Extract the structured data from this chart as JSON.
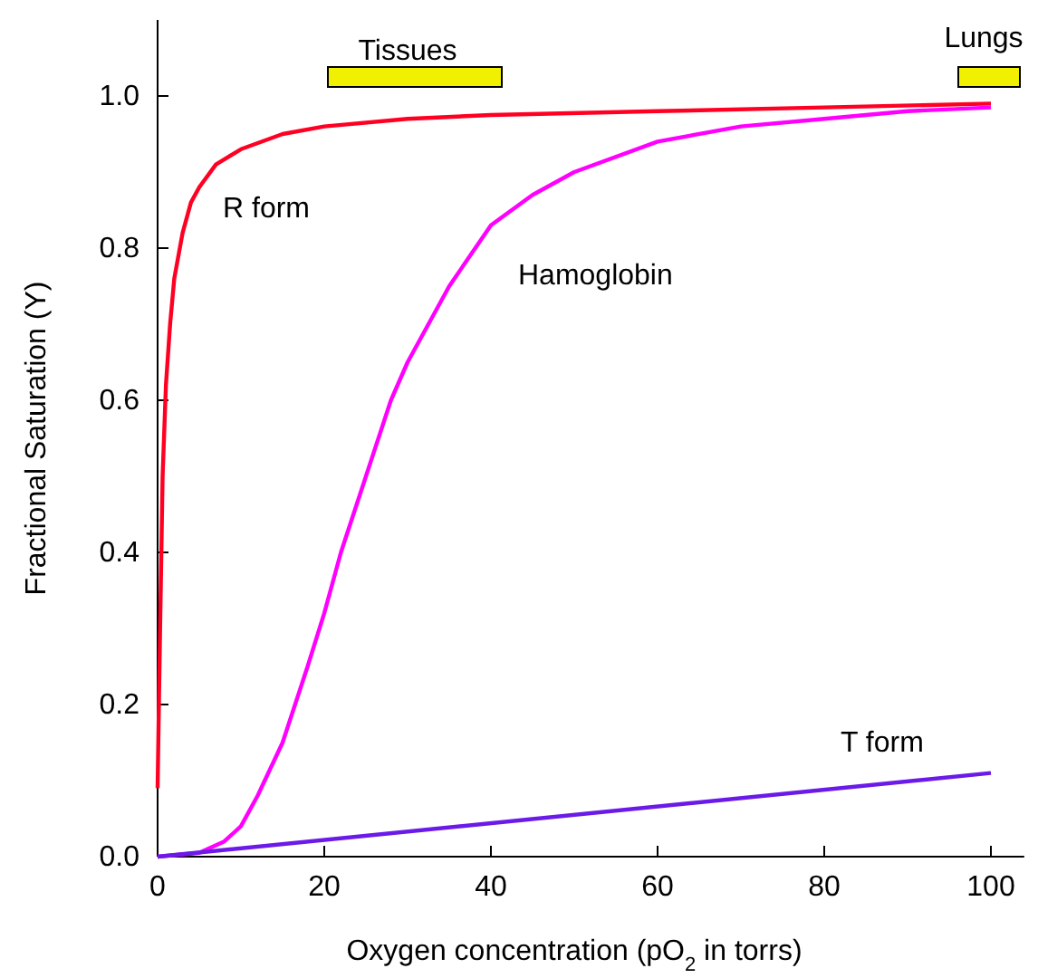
{
  "chart_data": {
    "type": "line",
    "xlabel": "Oxygen concentration (pO$_{2}$ in torrs)",
    "ylabel": "Fractional Saturation (Y)",
    "xlim": [
      0,
      104
    ],
    "ylim": [
      0,
      1.1
    ],
    "xticks": [
      0,
      20,
      40,
      60,
      80,
      100
    ],
    "yticks": [
      {
        "value": 0,
        "label": "0.0"
      },
      {
        "value": 0.2,
        "label": "0.2"
      },
      {
        "value": 0.4,
        "label": "0.4"
      },
      {
        "value": 0.6,
        "label": "0.6"
      },
      {
        "value": 0.8,
        "label": "0.8"
      },
      {
        "value": 1,
        "label": "1.0"
      }
    ],
    "grid": false,
    "line_style": "solid",
    "marker": "none",
    "series": [
      {
        "color": "#ff0022",
        "x": [
          0,
          0.3,
          0.6,
          1,
          1.5,
          2,
          3,
          4,
          5,
          7,
          10,
          15,
          20,
          30,
          40,
          60,
          80,
          100
        ],
        "values": [
          0.09,
          0.3,
          0.5,
          0.62,
          0.7,
          0.76,
          0.82,
          0.86,
          0.88,
          0.91,
          0.93,
          0.95,
          0.96,
          0.97,
          0.975,
          0.98,
          0.985,
          0.99
        ]
      },
      {
        "color": "#ff00ff",
        "x": [
          0,
          5,
          8,
          10,
          12,
          15,
          18,
          20,
          22,
          25,
          28,
          30,
          35,
          40,
          45,
          50,
          60,
          70,
          80,
          90,
          100
        ],
        "values": [
          0,
          0.005,
          0.02,
          0.04,
          0.08,
          0.15,
          0.25,
          0.32,
          0.4,
          0.5,
          0.6,
          0.65,
          0.75,
          0.83,
          0.87,
          0.9,
          0.94,
          0.96,
          0.97,
          0.98,
          0.985
        ]
      },
      {
        "color": "#6a1be8",
        "x": [
          0,
          100
        ],
        "values": [
          0,
          0.11
        ]
      }
    ],
    "annotations": [
      "Tissues",
      "Lungs",
      "R form",
      "Hamoglobin",
      "T form"
    ]
  }
}
